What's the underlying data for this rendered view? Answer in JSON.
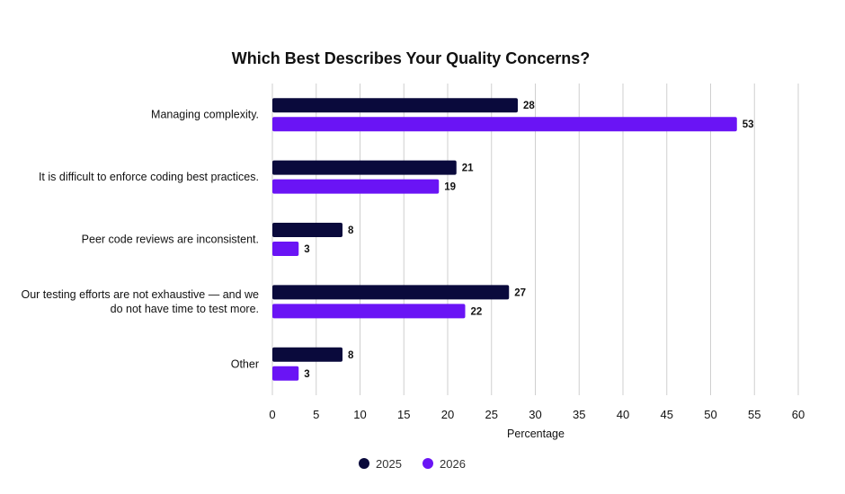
{
  "chart_data": {
    "type": "bar",
    "orientation": "horizontal",
    "title": "Which Best Describes Your Quality Concerns?",
    "xlabel": "Percentage",
    "ylabel": "",
    "xlim": [
      0,
      60
    ],
    "x_ticks": [
      0,
      5,
      10,
      15,
      20,
      25,
      30,
      35,
      40,
      45,
      50,
      55,
      60
    ],
    "grid": true,
    "legend_position": "bottom",
    "categories": [
      [
        "Managing complexity."
      ],
      [
        "It is difficult to enforce coding best practices."
      ],
      [
        "Peer code reviews are inconsistent."
      ],
      [
        "Our testing efforts are not exhaustive — and we",
        "do not have time to test more."
      ],
      [
        "Other"
      ]
    ],
    "series": [
      {
        "name": "2025",
        "color": "#0a0a3c",
        "values": [
          28,
          21,
          8,
          27,
          8
        ]
      },
      {
        "name": "2026",
        "color": "#6a14f5",
        "values": [
          53,
          19,
          3,
          22,
          3
        ]
      }
    ]
  }
}
